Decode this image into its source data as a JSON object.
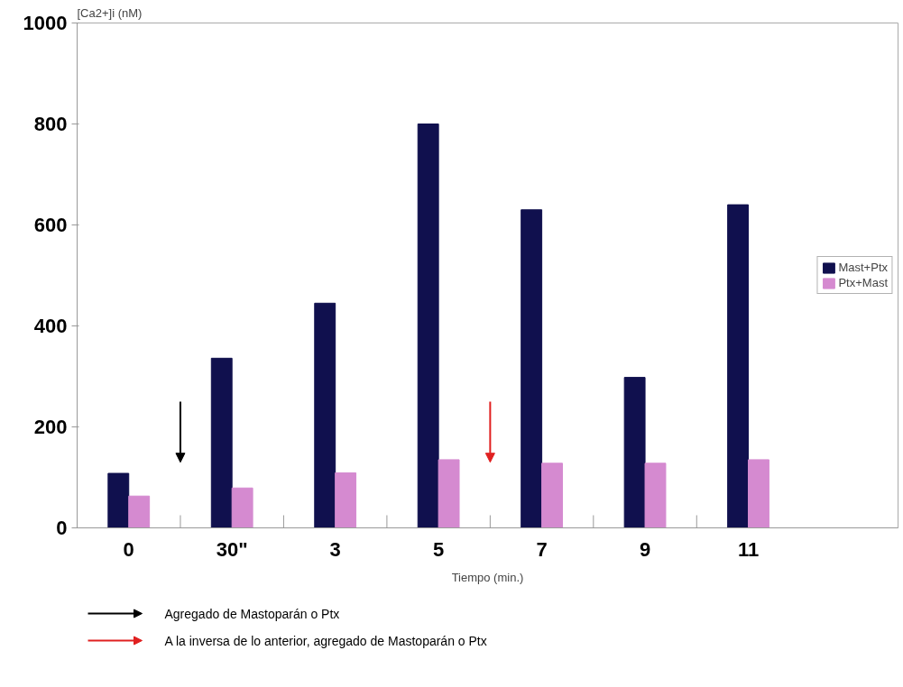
{
  "chart_data": {
    "type": "bar",
    "ylabel": "[Ca2+]i (nM)",
    "xlabel": "Tiempo (min.)",
    "categories": [
      "0",
      "30\"",
      "3",
      "5",
      "7",
      "9",
      "11"
    ],
    "series": [
      {
        "name": "Mast+Ptx",
        "color": "#10104e",
        "values": [
          108,
          336,
          445,
          800,
          630,
          298,
          640
        ]
      },
      {
        "name": "Ptx+Mast",
        "color": "#d58ad0",
        "values": [
          63,
          79,
          109,
          135,
          128,
          128,
          135
        ]
      }
    ],
    "ylim": [
      0,
      1000
    ],
    "yticks": [
      0,
      200,
      400,
      600,
      800,
      1000
    ],
    "grid": false,
    "legend": "right",
    "annotations": [
      "Agregado de Mastoparán o Ptx",
      "A la inversa de lo anterior, agregado de Mastoparán o Ptx"
    ]
  }
}
